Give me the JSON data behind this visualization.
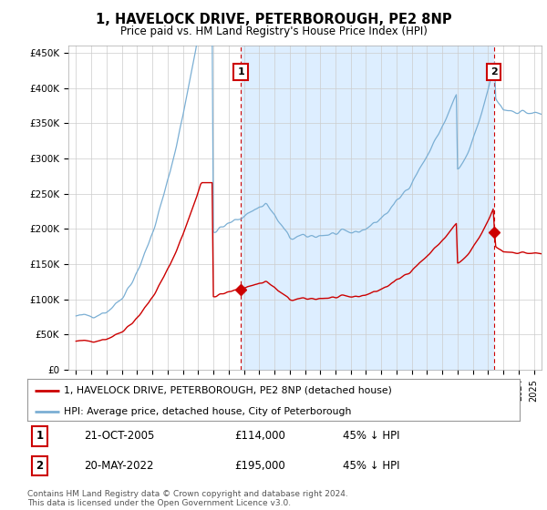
{
  "title": "1, HAVELOCK DRIVE, PETERBOROUGH, PE2 8NP",
  "subtitle": "Price paid vs. HM Land Registry's House Price Index (HPI)",
  "ylim": [
    0,
    460000
  ],
  "yticks": [
    0,
    50000,
    100000,
    150000,
    200000,
    250000,
    300000,
    350000,
    400000,
    450000
  ],
  "ytick_labels": [
    "£0",
    "£50K",
    "£100K",
    "£150K",
    "£200K",
    "£250K",
    "£300K",
    "£350K",
    "£400K",
    "£450K"
  ],
  "sale1_date": 2005.8,
  "sale1_price": 114000,
  "sale1_label": "1",
  "sale1_text": "21-OCT-2005",
  "sale1_amount": "£114,000",
  "sale1_hpi": "45% ↓ HPI",
  "sale2_date": 2022.37,
  "sale2_price": 195000,
  "sale2_label": "2",
  "sale2_text": "20-MAY-2022",
  "sale2_amount": "£195,000",
  "sale2_hpi": "45% ↓ HPI",
  "house_color": "#cc0000",
  "hpi_color": "#7bafd4",
  "shade_color": "#ddeeff",
  "legend_house": "1, HAVELOCK DRIVE, PETERBOROUGH, PE2 8NP (detached house)",
  "legend_hpi": "HPI: Average price, detached house, City of Peterborough",
  "footnote": "Contains HM Land Registry data © Crown copyright and database right 2024.\nThis data is licensed under the Open Government Licence v3.0.",
  "background_color": "#ffffff",
  "grid_color": "#cccccc",
  "xmin": 1994.5,
  "xmax": 2025.5
}
